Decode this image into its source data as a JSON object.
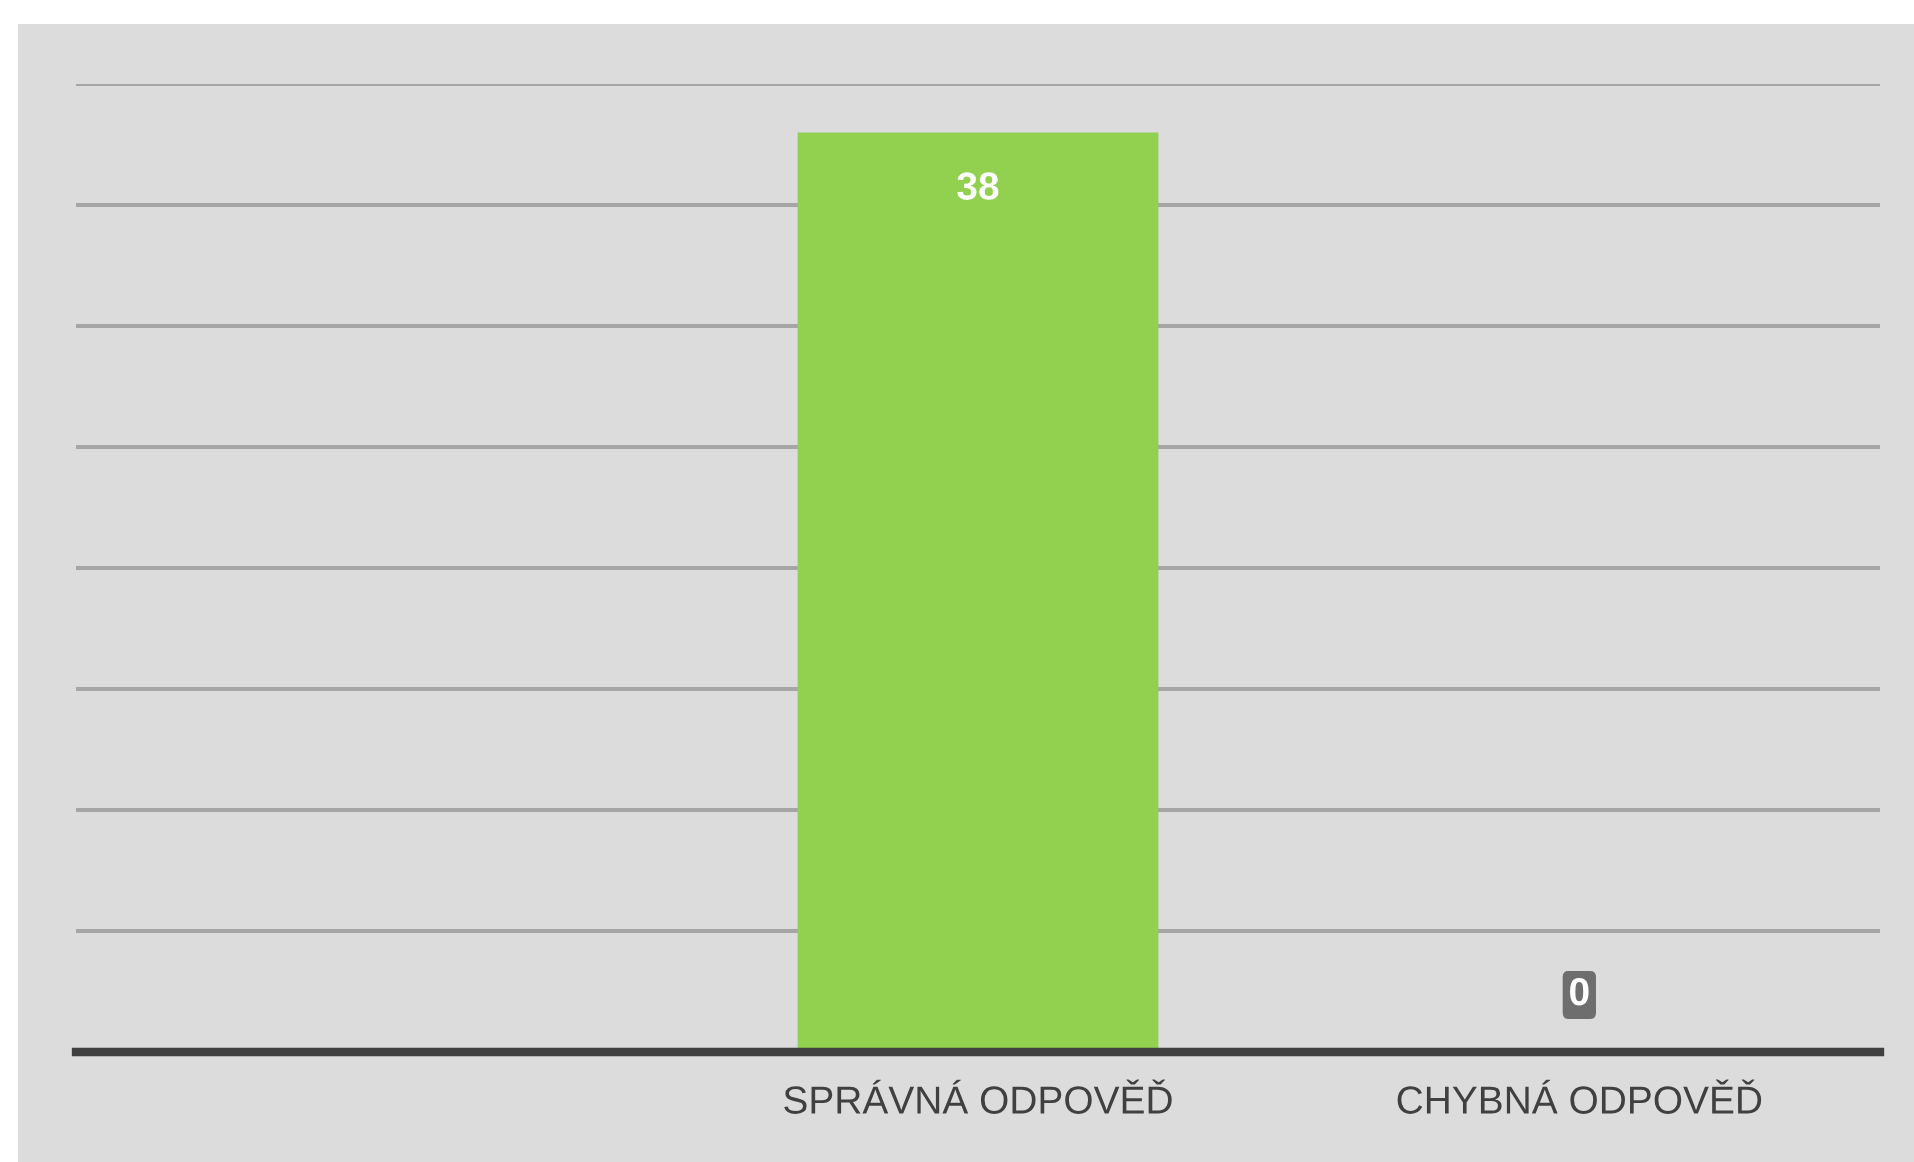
{
  "chart_data": {
    "type": "bar",
    "categories": [
      null,
      "SPRÁVNÁ ODPOVĚĎ",
      "CHYBNÁ ODPOVĚĎ"
    ],
    "values": [
      null,
      38,
      0
    ],
    "color": "#92d050",
    "ylim": [
      0,
      40
    ],
    "yticks": [
      {
        "value": 0,
        "label": null
      },
      {
        "value": 5,
        "label": null
      },
      {
        "value": 10,
        "label": null
      },
      {
        "value": 15,
        "label": null
      },
      {
        "value": 20,
        "label": null
      },
      {
        "value": 25,
        "label": null
      },
      {
        "value": 30,
        "label": null
      },
      {
        "value": 35,
        "label": null
      },
      {
        "value": 40,
        "label": null
      }
    ],
    "grid": "y",
    "tick_labels": "x",
    "data_labels": true
  }
}
